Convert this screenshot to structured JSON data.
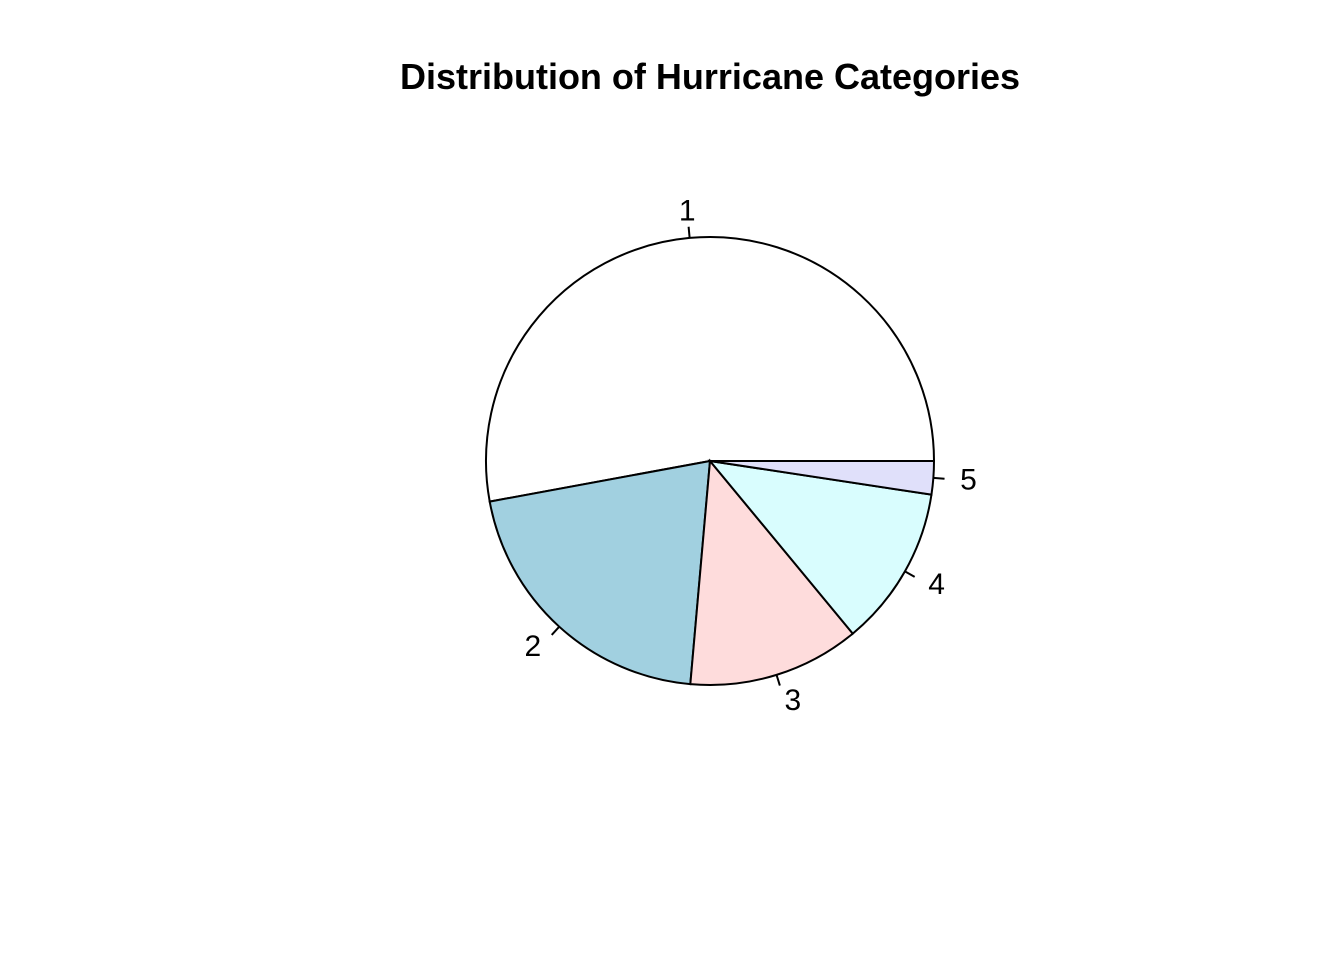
{
  "chart_data": {
    "type": "pie",
    "title": "Distribution of Hurricane Categories",
    "clockwise": false,
    "start_angle_deg": 0,
    "slices": [
      {
        "label": "1",
        "value": 52.9,
        "color": "#ffffff"
      },
      {
        "label": "2",
        "value": 20.7,
        "color": "#a1d0e0"
      },
      {
        "label": "3",
        "value": 12.4,
        "color": "#fedcdc"
      },
      {
        "label": "4",
        "value": 11.6,
        "color": "#d9fdfe"
      },
      {
        "label": "5",
        "value": 2.4,
        "color": "#e0e0fa"
      }
    ]
  }
}
